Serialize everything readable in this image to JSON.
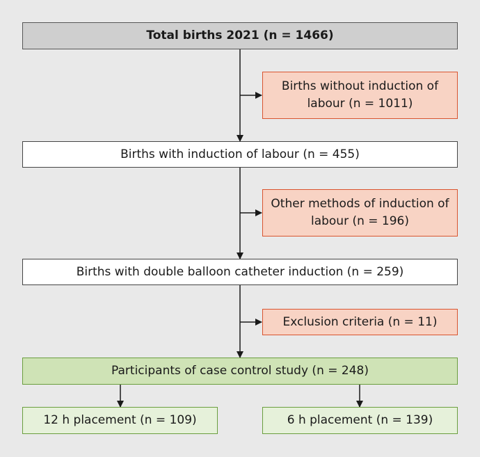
{
  "boxes": {
    "total_births": "Total births 2021 (n = 1466)",
    "without_induction": "Births without induction of labour (n = 1011)",
    "with_induction": "Births with induction of labour (n = 455)",
    "other_methods": "Other methods of induction of labour (n = 196)",
    "double_balloon": "Births with double balloon catheter induction (n = 259)",
    "exclusion": "Exclusion criteria (n = 11)",
    "participants": "Participants of case control study (n = 248)",
    "placement_12h": "12 h placement (n = 109)",
    "placement_6h": "6 h placement (n = 139)"
  },
  "colors": {
    "header_fill": "#cfcfcf",
    "excluded_fill": "#f8d3c4",
    "excluded_border": "#d9542f",
    "study_fill": "#cfe3b6",
    "group_fill": "#e6f1da",
    "group_border": "#6a9e3e",
    "background": "#e9e9e9"
  }
}
